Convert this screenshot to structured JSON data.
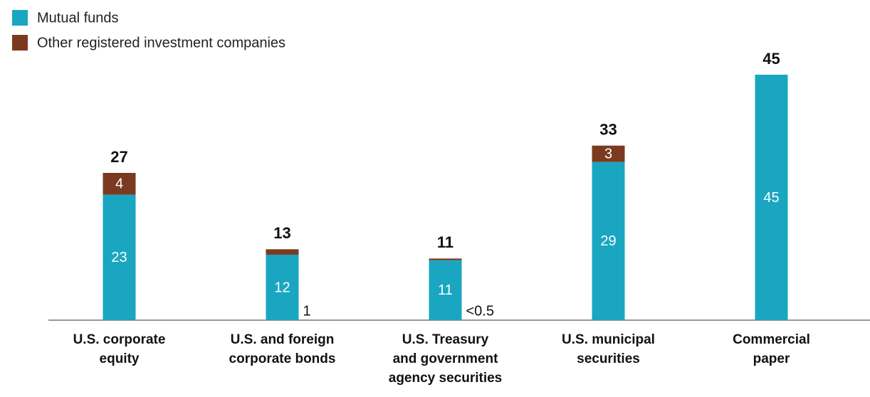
{
  "chart_data": {
    "type": "stacked_bar",
    "categories": [
      [
        "U.S. corporate",
        "equity"
      ],
      [
        "U.S. and foreign",
        "corporate bonds"
      ],
      [
        "U.S. Treasury",
        "and government",
        "agency securities"
      ],
      [
        "U.S. municipal",
        "securities"
      ],
      [
        "Commercial",
        "paper"
      ]
    ],
    "series": [
      {
        "name": "Mutual funds",
        "color": "#1aa6c1",
        "values": [
          23,
          12,
          11,
          29,
          45
        ]
      },
      {
        "name": "Other registered investment companies",
        "color": "#7b3a20",
        "values": [
          4,
          1,
          0.3,
          3,
          0
        ],
        "value_labels": [
          "4",
          "1",
          "<0.5",
          "3",
          null
        ]
      }
    ],
    "totals": [
      27,
      13,
      11,
      33,
      45
    ],
    "ylim": [
      0,
      45
    ],
    "legend": "top-left"
  }
}
